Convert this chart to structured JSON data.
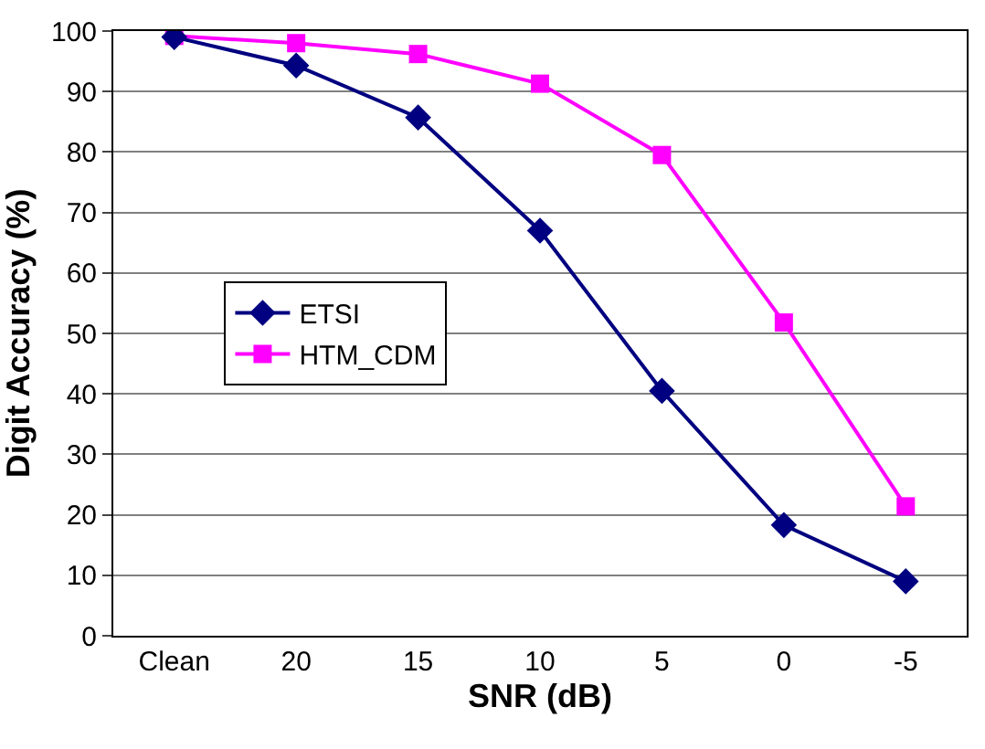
{
  "chart_data": {
    "type": "line",
    "xlabel": "SNR (dB)",
    "ylabel": "Digit Accuracy (%)",
    "categories": [
      "Clean",
      "20",
      "15",
      "10",
      "5",
      "0",
      "-5"
    ],
    "series": [
      {
        "name": "ETSI",
        "color": "#000080",
        "marker": "diamond",
        "values": [
          99,
          94.3,
          85.7,
          67,
          40.5,
          18.3,
          9
        ]
      },
      {
        "name": "HTM_CDM",
        "color": "#ff00ff",
        "marker": "square",
        "values": [
          99.2,
          98,
          96.2,
          91.3,
          79.5,
          51.8,
          21.4
        ]
      }
    ],
    "ylim": [
      0,
      100
    ],
    "yticks": [
      0,
      10,
      20,
      30,
      40,
      50,
      60,
      70,
      80,
      90,
      100
    ],
    "grid": "y",
    "legend": "left",
    "line_style": "solid"
  }
}
